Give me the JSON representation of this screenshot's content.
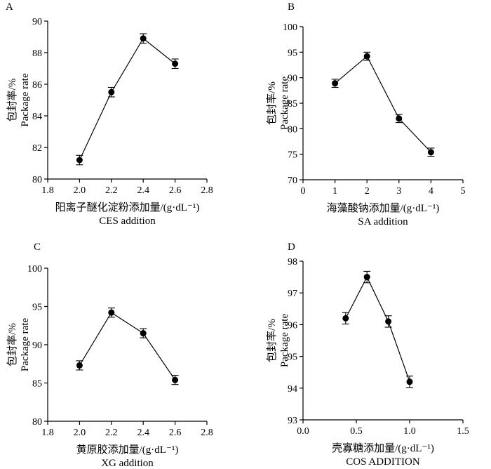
{
  "chart_data": [
    {
      "type": "line",
      "panel_label": "A",
      "xlabel_cn": "阳离子醚化淀粉添加量/(g·dL⁻¹)",
      "xlabel_en": "CES addition",
      "ylabel_cn": "包封率/%",
      "ylabel_en": "Package rate",
      "xlim": [
        1.8,
        2.8
      ],
      "ylim": [
        80,
        90
      ],
      "xticks": [
        1.8,
        2.0,
        2.2,
        2.4,
        2.6,
        2.8
      ],
      "xtick_labels": [
        "1.8",
        "2.0",
        "2.2",
        "2.4",
        "2.6",
        "2.8"
      ],
      "yticks": [
        80,
        82,
        84,
        86,
        88,
        90
      ],
      "ytick_labels": [
        "80",
        "82",
        "84",
        "86",
        "88",
        "90"
      ],
      "x": [
        2.0,
        2.2,
        2.4,
        2.6
      ],
      "y": [
        81.2,
        85.5,
        88.9,
        87.3
      ],
      "err": [
        0.3,
        0.3,
        0.3,
        0.3
      ]
    },
    {
      "type": "line",
      "panel_label": "B",
      "xlabel_cn": "海藻酸钠添加量/(g·dL⁻¹)",
      "xlabel_en": "SA addition",
      "ylabel_cn": "包封率/%",
      "ylabel_en": "Package rate",
      "xlim": [
        0,
        5
      ],
      "ylim": [
        70,
        100
      ],
      "xticks": [
        0,
        1,
        2,
        3,
        4,
        5
      ],
      "xtick_labels": [
        "0",
        "1",
        "2",
        "3",
        "4",
        "5"
      ],
      "yticks": [
        70,
        75,
        80,
        85,
        90,
        95,
        100
      ],
      "ytick_labels": [
        "70",
        "75",
        "80",
        "85",
        "90",
        "95",
        "100"
      ],
      "x": [
        1,
        2,
        3,
        4
      ],
      "y": [
        88.9,
        94.2,
        82.0,
        75.4
      ],
      "err": [
        0.8,
        0.8,
        0.8,
        0.8
      ]
    },
    {
      "type": "line",
      "panel_label": "C",
      "xlabel_cn": "黄原胶添加量/(g·dL⁻¹)",
      "xlabel_en": "XG addition",
      "ylabel_cn": "包封率/%",
      "ylabel_en": "Package rate",
      "xlim": [
        1.8,
        2.8
      ],
      "ylim": [
        80,
        100
      ],
      "xticks": [
        1.8,
        2.0,
        2.2,
        2.4,
        2.6,
        2.8
      ],
      "xtick_labels": [
        "1.8",
        "2.0",
        "2.2",
        "2.4",
        "2.6",
        "2.8"
      ],
      "yticks": [
        80,
        85,
        90,
        95,
        100
      ],
      "ytick_labels": [
        "80",
        "85",
        "90",
        "95",
        "100"
      ],
      "x": [
        2.0,
        2.2,
        2.4,
        2.6
      ],
      "y": [
        87.3,
        94.2,
        91.5,
        85.4
      ],
      "err": [
        0.6,
        0.6,
        0.6,
        0.6
      ]
    },
    {
      "type": "line",
      "panel_label": "D",
      "xlabel_cn": "壳寡糖添加量/(g·dL⁻¹)",
      "xlabel_en": "COS ADDITION",
      "ylabel_cn": "包封率/%",
      "ylabel_en": "Package rate",
      "xlim": [
        0,
        1.5
      ],
      "ylim": [
        93,
        98
      ],
      "xticks": [
        0,
        0.5,
        1.0,
        1.5
      ],
      "xtick_labels": [
        "0.0",
        "0.5",
        "1.0",
        "1.5"
      ],
      "yticks": [
        93,
        94,
        95,
        96,
        97,
        98
      ],
      "ytick_labels": [
        "93",
        "94",
        "95",
        "96",
        "97",
        "98"
      ],
      "x": [
        0.4,
        0.6,
        0.8,
        1.0
      ],
      "y": [
        96.2,
        97.5,
        96.1,
        94.2
      ],
      "err": [
        0.18,
        0.18,
        0.18,
        0.18
      ]
    }
  ]
}
